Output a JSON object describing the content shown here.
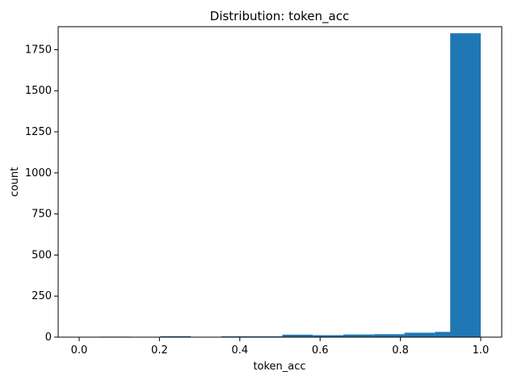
{
  "chart_data": {
    "type": "bar",
    "title": "Distribution: token_acc",
    "xlabel": "token_acc",
    "ylabel": "count",
    "xlim": [
      0.0,
      1.05
    ],
    "ylim": [
      0,
      1890
    ],
    "xticks": [
      "0.0",
      "0.2",
      "0.4",
      "0.6",
      "0.8",
      "1.0"
    ],
    "yticks": [
      "0",
      "250",
      "500",
      "750",
      "1000",
      "1250",
      "1500",
      "1750"
    ],
    "grid": false,
    "bar_color": "#1f77b4",
    "bins": [
      {
        "x0": 0.05,
        "x1": 0.126,
        "count": 3
      },
      {
        "x0": 0.126,
        "x1": 0.202,
        "count": 2
      },
      {
        "x0": 0.202,
        "x1": 0.278,
        "count": 6
      },
      {
        "x0": 0.278,
        "x1": 0.354,
        "count": 2
      },
      {
        "x0": 0.354,
        "x1": 0.43,
        "count": 5
      },
      {
        "x0": 0.43,
        "x1": 0.506,
        "count": 5
      },
      {
        "x0": 0.506,
        "x1": 0.582,
        "count": 15
      },
      {
        "x0": 0.582,
        "x1": 0.658,
        "count": 12
      },
      {
        "x0": 0.658,
        "x1": 0.734,
        "count": 16
      },
      {
        "x0": 0.734,
        "x1": 0.81,
        "count": 18
      },
      {
        "x0": 0.81,
        "x1": 0.886,
        "count": 27
      },
      {
        "x0": 0.886,
        "x1": 0.962,
        "count": 32
      },
      {
        "x0": 0.962,
        "x1": 1.0,
        "count": 0
      }
    ],
    "last_bin": {
      "x0": 0.924,
      "x1": 1.0,
      "count": 1850
    }
  }
}
